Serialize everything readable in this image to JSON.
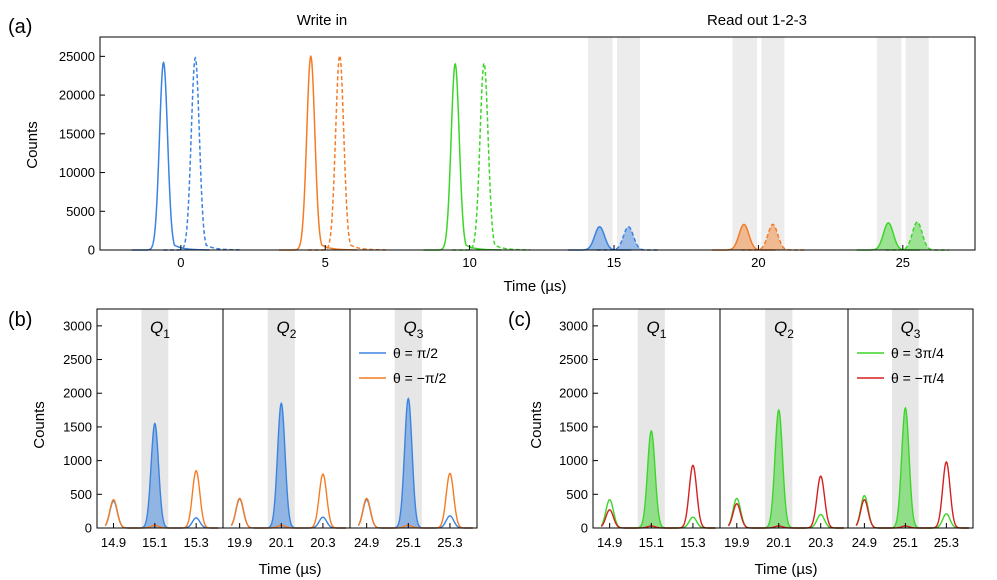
{
  "chart_data": [
    {
      "panel": "(a)",
      "type": "line",
      "titles": [
        "Write in",
        "Read out 1-2-3"
      ],
      "xlabel": "Time (µs)",
      "ylabel": "Counts",
      "xlim": [
        -2.8,
        27.5
      ],
      "ylim": [
        0,
        27500
      ],
      "xticks": [
        0,
        5,
        10,
        15,
        20,
        25
      ],
      "yticks": [
        0,
        5000,
        10000,
        15000,
        20000,
        25000
      ],
      "shaded_windows": [
        [
          14.1,
          14.95
        ],
        [
          15.1,
          15.9
        ],
        [
          19.1,
          19.95
        ],
        [
          20.1,
          20.9
        ],
        [
          24.1,
          24.95
        ],
        [
          25.1,
          25.9
        ]
      ],
      "pulses": [
        {
          "center": -0.6,
          "peak": 24200,
          "width": 0.14,
          "tail": 0.3,
          "color": "#3a83e0",
          "style": "solid"
        },
        {
          "center": 0.5,
          "peak": 24800,
          "width": 0.14,
          "tail": 0.3,
          "color": "#3a83e0",
          "style": "dashed"
        },
        {
          "center": 4.5,
          "peak": 25000,
          "width": 0.14,
          "tail": 0.3,
          "color": "#f57c24",
          "style": "solid"
        },
        {
          "center": 5.5,
          "peak": 25100,
          "width": 0.14,
          "tail": 0.3,
          "color": "#f57c24",
          "style": "dashed"
        },
        {
          "center": 9.5,
          "peak": 24000,
          "width": 0.14,
          "tail": 0.3,
          "color": "#3cd629",
          "style": "solid"
        },
        {
          "center": 10.5,
          "peak": 24100,
          "width": 0.14,
          "tail": 0.3,
          "color": "#3cd629",
          "style": "dashed"
        },
        {
          "center": 14.5,
          "peak": 3000,
          "width": 0.17,
          "tail": 0,
          "color": "#3a83e0",
          "style": "solid",
          "fill": true
        },
        {
          "center": 15.5,
          "peak": 3000,
          "width": 0.17,
          "tail": 0,
          "color": "#3a83e0",
          "style": "dashed",
          "fill": true
        },
        {
          "center": 19.5,
          "peak": 3300,
          "width": 0.17,
          "tail": 0,
          "color": "#f57c24",
          "style": "solid",
          "fill": true
        },
        {
          "center": 20.5,
          "peak": 3300,
          "width": 0.17,
          "tail": 0,
          "color": "#f57c24",
          "style": "dashed",
          "fill": true
        },
        {
          "center": 24.5,
          "peak": 3500,
          "width": 0.17,
          "tail": 0,
          "color": "#3cd629",
          "style": "solid",
          "fill": true
        },
        {
          "center": 25.5,
          "peak": 3600,
          "width": 0.17,
          "tail": 0,
          "color": "#3cd629",
          "style": "dashed",
          "fill": true
        }
      ]
    },
    {
      "panel": "(b)",
      "type": "line",
      "xlabel": "Time (µs)",
      "ylabel": "Counts",
      "ylim": [
        0,
        3250
      ],
      "yticks": [
        0,
        500,
        1000,
        1500,
        2000,
        2500,
        3000
      ],
      "legend": [
        "θ = π/2",
        "θ = −π/2"
      ],
      "legend_placement": "upper-right of third subplot",
      "series_colors": [
        "#3a83e0",
        "#f57c24"
      ],
      "subplots": [
        {
          "qubit": "Q",
          "sub": "1",
          "xlim": [
            14.82,
            15.43
          ],
          "xticks": [
            "14.9",
            "15.1",
            "15.3"
          ],
          "xtick_values": [
            14.9,
            15.1,
            15.3
          ],
          "shade": [
            15.035,
            15.165
          ],
          "series": [
            {
              "name": "θ = π/2",
              "peaks": [
                {
                  "x": 14.9,
                  "y": 400
                },
                {
                  "x": 15.1,
                  "y": 1550
                },
                {
                  "x": 15.3,
                  "y": 150
                }
              ],
              "fill_peak": 1
            },
            {
              "name": "θ = −π/2",
              "peaks": [
                {
                  "x": 14.9,
                  "y": 420
                },
                {
                  "x": 15.1,
                  "y": 40
                },
                {
                  "x": 15.3,
                  "y": 850
                }
              ]
            }
          ]
        },
        {
          "qubit": "Q",
          "sub": "2",
          "xlim": [
            19.82,
            20.43
          ],
          "xticks": [
            "19.9",
            "20.1",
            "20.3"
          ],
          "xtick_values": [
            19.9,
            20.1,
            20.3
          ],
          "shade": [
            20.035,
            20.165
          ],
          "series": [
            {
              "name": "θ = π/2",
              "peaks": [
                {
                  "x": 19.9,
                  "y": 430
                },
                {
                  "x": 20.1,
                  "y": 1850
                },
                {
                  "x": 20.3,
                  "y": 160
                }
              ],
              "fill_peak": 1
            },
            {
              "name": "θ = −π/2",
              "peaks": [
                {
                  "x": 19.9,
                  "y": 440
                },
                {
                  "x": 20.1,
                  "y": 40
                },
                {
                  "x": 20.3,
                  "y": 800
                }
              ]
            }
          ]
        },
        {
          "qubit": "Q",
          "sub": "3",
          "xlim": [
            24.82,
            25.43
          ],
          "xticks": [
            "24.9",
            "25.1",
            "25.3"
          ],
          "xtick_values": [
            24.9,
            25.1,
            25.3
          ],
          "shade": [
            25.035,
            25.165
          ],
          "series": [
            {
              "name": "θ = π/2",
              "peaks": [
                {
                  "x": 24.9,
                  "y": 420
                },
                {
                  "x": 25.1,
                  "y": 1920
                },
                {
                  "x": 25.3,
                  "y": 180
                }
              ],
              "fill_peak": 1
            },
            {
              "name": "θ = −π/2",
              "peaks": [
                {
                  "x": 24.9,
                  "y": 440
                },
                {
                  "x": 25.1,
                  "y": 40
                },
                {
                  "x": 25.3,
                  "y": 810
                }
              ]
            }
          ]
        }
      ]
    },
    {
      "panel": "(c)",
      "type": "line",
      "xlabel": "Time (µs)",
      "ylabel": "Counts",
      "ylim": [
        0,
        3250
      ],
      "yticks": [
        0,
        500,
        1000,
        1500,
        2000,
        2500,
        3000
      ],
      "legend": [
        "θ = 3π/4",
        "θ = −π/4"
      ],
      "legend_placement": "upper-right of third subplot",
      "series_colors": [
        "#3cd629",
        "#d42020"
      ],
      "subplots": [
        {
          "qubit": "Q",
          "sub": "1",
          "xlim": [
            14.82,
            15.43
          ],
          "xticks": [
            "14.9",
            "15.1",
            "15.3"
          ],
          "xtick_values": [
            14.9,
            15.1,
            15.3
          ],
          "shade": [
            15.035,
            15.165
          ],
          "series": [
            {
              "name": "θ = 3π/4",
              "peaks": [
                {
                  "x": 14.9,
                  "y": 420
                },
                {
                  "x": 15.1,
                  "y": 1440
                },
                {
                  "x": 15.3,
                  "y": 160
                }
              ],
              "fill_peak": 1
            },
            {
              "name": "θ = −π/4",
              "peaks": [
                {
                  "x": 14.9,
                  "y": 270
                },
                {
                  "x": 15.1,
                  "y": 30
                },
                {
                  "x": 15.3,
                  "y": 930
                }
              ]
            }
          ]
        },
        {
          "qubit": "Q",
          "sub": "2",
          "xlim": [
            19.82,
            20.43
          ],
          "xticks": [
            "19.9",
            "20.1",
            "20.3"
          ],
          "xtick_values": [
            19.9,
            20.1,
            20.3
          ],
          "shade": [
            20.035,
            20.165
          ],
          "series": [
            {
              "name": "θ = 3π/4",
              "peaks": [
                {
                  "x": 19.9,
                  "y": 440
                },
                {
                  "x": 20.1,
                  "y": 1750
                },
                {
                  "x": 20.3,
                  "y": 200
                }
              ],
              "fill_peak": 1
            },
            {
              "name": "θ = −π/4",
              "peaks": [
                {
                  "x": 19.9,
                  "y": 360
                },
                {
                  "x": 20.1,
                  "y": 30
                },
                {
                  "x": 20.3,
                  "y": 770
                }
              ]
            }
          ]
        },
        {
          "qubit": "Q",
          "sub": "3",
          "xlim": [
            24.82,
            25.43
          ],
          "xticks": [
            "24.9",
            "25.1",
            "25.3"
          ],
          "xtick_values": [
            24.9,
            25.1,
            25.3
          ],
          "shade": [
            25.035,
            25.165
          ],
          "series": [
            {
              "name": "θ = 3π/4",
              "peaks": [
                {
                  "x": 24.9,
                  "y": 480
                },
                {
                  "x": 25.1,
                  "y": 1780
                },
                {
                  "x": 25.3,
                  "y": 210
                }
              ],
              "fill_peak": 1
            },
            {
              "name": "θ = −π/4",
              "peaks": [
                {
                  "x": 24.9,
                  "y": 420
                },
                {
                  "x": 25.1,
                  "y": 30
                },
                {
                  "x": 25.3,
                  "y": 980
                }
              ]
            }
          ]
        }
      ]
    }
  ]
}
